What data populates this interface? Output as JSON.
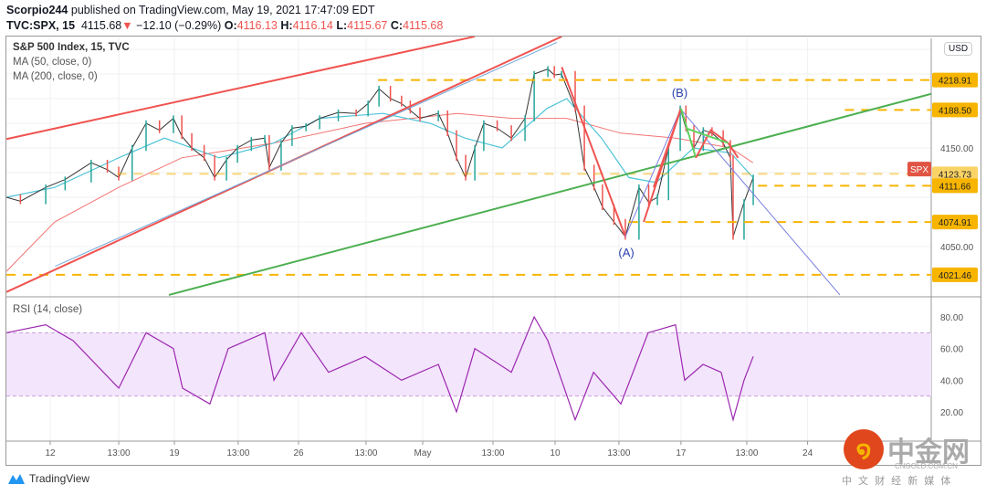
{
  "header": {
    "author": "Scorpio244",
    "published": "published on TradingView.com, May 19, 2021 17:47:09 EDT",
    "symbol": "TVC:SPX, 15",
    "last": "4115.68",
    "change": "−12.10 (−0.29%)",
    "o_label": "O:",
    "o": "4116.13",
    "h_label": "H:",
    "h": "4116.14",
    "l_label": "L:",
    "l": "4115.67",
    "c_label": "C:",
    "c": "4115.68"
  },
  "legend": {
    "title": "S&P 500 Index, 15, TVC",
    "ma50": "MA (50, close, 0)",
    "ma200": "MA (200, close, 0)",
    "rsi": "RSI (14, close)"
  },
  "currency": "USD",
  "footer": {
    "brand": "TradingView",
    "watermark": "中金网",
    "watermark_sub": "CNGOLD.COM.CN",
    "watermark_tag": "中 文 财 经 新 媒 体"
  },
  "colors": {
    "up": "#26a69a",
    "down": "#ef5350",
    "ma50": "#4dc4d8",
    "ma200": "#ef5350",
    "level": "#f7b500",
    "green_line": "#4caf50",
    "rsi": "#9c27b0",
    "rsi_band": "#f3e5fc"
  },
  "chart_data": {
    "type": "line",
    "title": "S&P 500 Index, 15, TVC",
    "x_unit": "trading days since Apr 12",
    "x_ticks": [
      {
        "t": 0,
        "label": "12"
      },
      {
        "t": 2.76,
        "label": "13:00"
      },
      {
        "t": 5,
        "label": "19"
      },
      {
        "t": 7.57,
        "label": "13:00"
      },
      {
        "t": 10,
        "label": "26"
      },
      {
        "t": 12.72,
        "label": "13:00"
      },
      {
        "t": 15,
        "label": "May"
      },
      {
        "t": 17.83,
        "label": "13:00"
      },
      {
        "t": 20.33,
        "label": "10"
      },
      {
        "t": 22.9,
        "label": "13:00"
      },
      {
        "t": 25.4,
        "label": "17"
      },
      {
        "t": 28.05,
        "label": "13:00"
      },
      {
        "t": 30.5,
        "label": "24"
      }
    ],
    "xlim": [
      -1.8,
      35.5
    ],
    "ylim": [
      3995,
      4265
    ],
    "y_ticks": [
      4050,
      4075,
      4100,
      4125,
      4150,
      4175,
      4200,
      4225,
      4250
    ],
    "price": [
      [
        -1.76,
        4100
      ],
      [
        -1.2,
        4096
      ],
      [
        -0.18,
        4110
      ],
      [
        0.6,
        4118
      ],
      [
        1.65,
        4135
      ],
      [
        2.3,
        4128
      ],
      [
        2.76,
        4120
      ],
      [
        3.3,
        4150
      ],
      [
        3.86,
        4175
      ],
      [
        4.4,
        4168
      ],
      [
        4.96,
        4180
      ],
      [
        5.3,
        4162
      ],
      [
        5.7,
        4150
      ],
      [
        6.2,
        4140
      ],
      [
        6.62,
        4120
      ],
      [
        7.1,
        4138
      ],
      [
        7.54,
        4150
      ],
      [
        8.1,
        4158
      ],
      [
        8.64,
        4160
      ],
      [
        8.82,
        4130
      ],
      [
        9.3,
        4155
      ],
      [
        9.74,
        4170
      ],
      [
        10.3,
        4172
      ],
      [
        10.85,
        4180
      ],
      [
        11.6,
        4186
      ],
      [
        12.32,
        4185
      ],
      [
        12.8,
        4195
      ],
      [
        13.24,
        4210
      ],
      [
        13.7,
        4200
      ],
      [
        14.15,
        4195
      ],
      [
        14.5,
        4188
      ],
      [
        14.89,
        4180
      ],
      [
        15.63,
        4185
      ],
      [
        16,
        4165
      ],
      [
        16.36,
        4140
      ],
      [
        16.73,
        4120
      ],
      [
        17.1,
        4150
      ],
      [
        17.46,
        4175
      ],
      [
        18,
        4170
      ],
      [
        18.57,
        4160
      ],
      [
        19.12,
        4180
      ],
      [
        19.49,
        4225
      ],
      [
        20.04,
        4230
      ],
      [
        20.3,
        4224
      ],
      [
        20.59,
        4225
      ],
      [
        21.14,
        4190
      ],
      [
        21.51,
        4130
      ],
      [
        21.9,
        4110
      ],
      [
        22.24,
        4090
      ],
      [
        22.7,
        4075
      ],
      [
        23.16,
        4060
      ],
      [
        23.71,
        4110
      ],
      [
        24.1,
        4095
      ],
      [
        24.45,
        4100
      ],
      [
        24.9,
        4150
      ],
      [
        25.37,
        4190
      ],
      [
        25.6,
        4170
      ],
      [
        25.92,
        4150
      ],
      [
        26.3,
        4168
      ],
      [
        26.65,
        4165
      ],
      [
        27.1,
        4155
      ],
      [
        27.39,
        4140
      ],
      [
        27.5,
        4060
      ],
      [
        27.94,
        4095
      ],
      [
        28.31,
        4120
      ]
    ],
    "ma50": [
      [
        -1.76,
        4100
      ],
      [
        0.18,
        4110
      ],
      [
        2.76,
        4140
      ],
      [
        4.6,
        4160
      ],
      [
        6.8,
        4140
      ],
      [
        9,
        4155
      ],
      [
        10.85,
        4180
      ],
      [
        13.4,
        4185
      ],
      [
        15.3,
        4175
      ],
      [
        16.7,
        4160
      ],
      [
        18.2,
        4150
      ],
      [
        20,
        4190
      ],
      [
        20.8,
        4200
      ],
      [
        22.2,
        4160
      ],
      [
        23.3,
        4120
      ],
      [
        24.4,
        4115
      ],
      [
        25.9,
        4150
      ],
      [
        27.4,
        4145
      ],
      [
        28.3,
        4120
      ]
    ],
    "ma200": [
      [
        -1.76,
        4025
      ],
      [
        0.18,
        4075
      ],
      [
        2.76,
        4110
      ],
      [
        5.3,
        4140
      ],
      [
        9,
        4155
      ],
      [
        12.7,
        4175
      ],
      [
        16.4,
        4185
      ],
      [
        18.6,
        4180
      ],
      [
        20.8,
        4180
      ],
      [
        22.98,
        4165
      ],
      [
        25.2,
        4160
      ],
      [
        27.4,
        4150
      ],
      [
        28.3,
        4135
      ]
    ],
    "levels": [
      {
        "value": 4218.91,
        "label": "4218.91",
        "from": 13.2
      },
      {
        "value": 4188.5,
        "label": "4188.50",
        "from": 32
      },
      {
        "value": 4123.73,
        "label": "4123.73",
        "from": 2.7,
        "faint": true
      },
      {
        "value": 4111.66,
        "label": "4111.66",
        "from": 28.5
      },
      {
        "value": 4074.91,
        "label": "4074.91",
        "from": 23.3
      },
      {
        "value": 4021.46,
        "label": "4021.46",
        "from": -1.76
      }
    ],
    "trendlines": [
      {
        "color": "#ef5350",
        "w": 2,
        "p": [
          [
            -1.76,
            4159
          ],
          [
            17.1,
            4263
          ]
        ]
      },
      {
        "color": "#ef5350",
        "w": 2,
        "p": [
          [
            -1.76,
            4004
          ],
          [
            20.6,
            4263
          ]
        ]
      },
      {
        "color": "#6fa8dc",
        "w": 1,
        "p": [
          [
            0.2,
            4030
          ],
          [
            20.4,
            4257
          ]
        ]
      },
      {
        "color": "#4caf50",
        "w": 2,
        "p": [
          [
            4.78,
            4001
          ],
          [
            35.5,
            4205
          ]
        ]
      },
      {
        "color": "#7b7fe0",
        "w": 1,
        "p": [
          [
            25.4,
            4189
          ],
          [
            31.8,
            4001
          ]
        ]
      },
      {
        "color": "#ef5350",
        "w": 2,
        "p": [
          [
            20.6,
            4232
          ],
          [
            23.16,
            4060
          ]
        ]
      },
      {
        "color": "#7b7fe0",
        "w": 1,
        "p": [
          [
            23.16,
            4060
          ],
          [
            25.4,
            4190
          ]
        ]
      },
      {
        "color": "#ef5350",
        "w": 2,
        "p": [
          [
            23.9,
            4075
          ],
          [
            25.4,
            4190
          ]
        ]
      },
      {
        "color": "#ef5350",
        "w": 2,
        "p": [
          [
            24.3,
            4110
          ],
          [
            25.4,
            4190
          ]
        ]
      },
      {
        "color": "#5fd35f",
        "w": 2,
        "p": [
          [
            25.4,
            4190
          ],
          [
            26,
            4140
          ]
        ]
      },
      {
        "color": "#ef5350",
        "w": 2,
        "p": [
          [
            26,
            4140
          ],
          [
            26.6,
            4168
          ],
          [
            27.3,
            4155
          ],
          [
            27.7,
            4140
          ]
        ]
      },
      {
        "color": "#5fd35f",
        "w": 2,
        "p": [
          [
            25.6,
            4170
          ],
          [
            27.3,
            4155
          ]
        ]
      }
    ],
    "wave_labels": [
      {
        "t": 23.2,
        "price": 4040,
        "label": "(A)"
      },
      {
        "t": 25.35,
        "price": 4202,
        "label": "(B)"
      }
    ],
    "current": {
      "label": "SPX",
      "value": 4115.68
    },
    "rsi": {
      "title": "RSI (14, close)",
      "ylim": [
        5,
        90
      ],
      "band": [
        30,
        70
      ],
      "y_ticks": [
        20,
        40,
        60,
        80
      ],
      "values": [
        [
          -1.76,
          70
        ],
        [
          -0.18,
          75
        ],
        [
          0.92,
          65
        ],
        [
          2.76,
          35
        ],
        [
          3.86,
          70
        ],
        [
          4.96,
          60
        ],
        [
          5.33,
          35
        ],
        [
          6.43,
          25
        ],
        [
          7.17,
          60
        ],
        [
          8.64,
          70
        ],
        [
          9.01,
          40
        ],
        [
          10.11,
          70
        ],
        [
          11.21,
          45
        ],
        [
          12.68,
          55
        ],
        [
          14.15,
          40
        ],
        [
          15.63,
          50
        ],
        [
          16.36,
          20
        ],
        [
          17.1,
          60
        ],
        [
          18.57,
          45
        ],
        [
          19.49,
          80
        ],
        [
          20.04,
          65
        ],
        [
          21.14,
          15
        ],
        [
          21.88,
          45
        ],
        [
          22.98,
          25
        ],
        [
          24.08,
          70
        ],
        [
          25.18,
          75
        ],
        [
          25.55,
          40
        ],
        [
          26.29,
          50
        ],
        [
          27.02,
          45
        ],
        [
          27.5,
          15
        ],
        [
          27.94,
          40
        ],
        [
          28.31,
          55
        ]
      ]
    }
  }
}
